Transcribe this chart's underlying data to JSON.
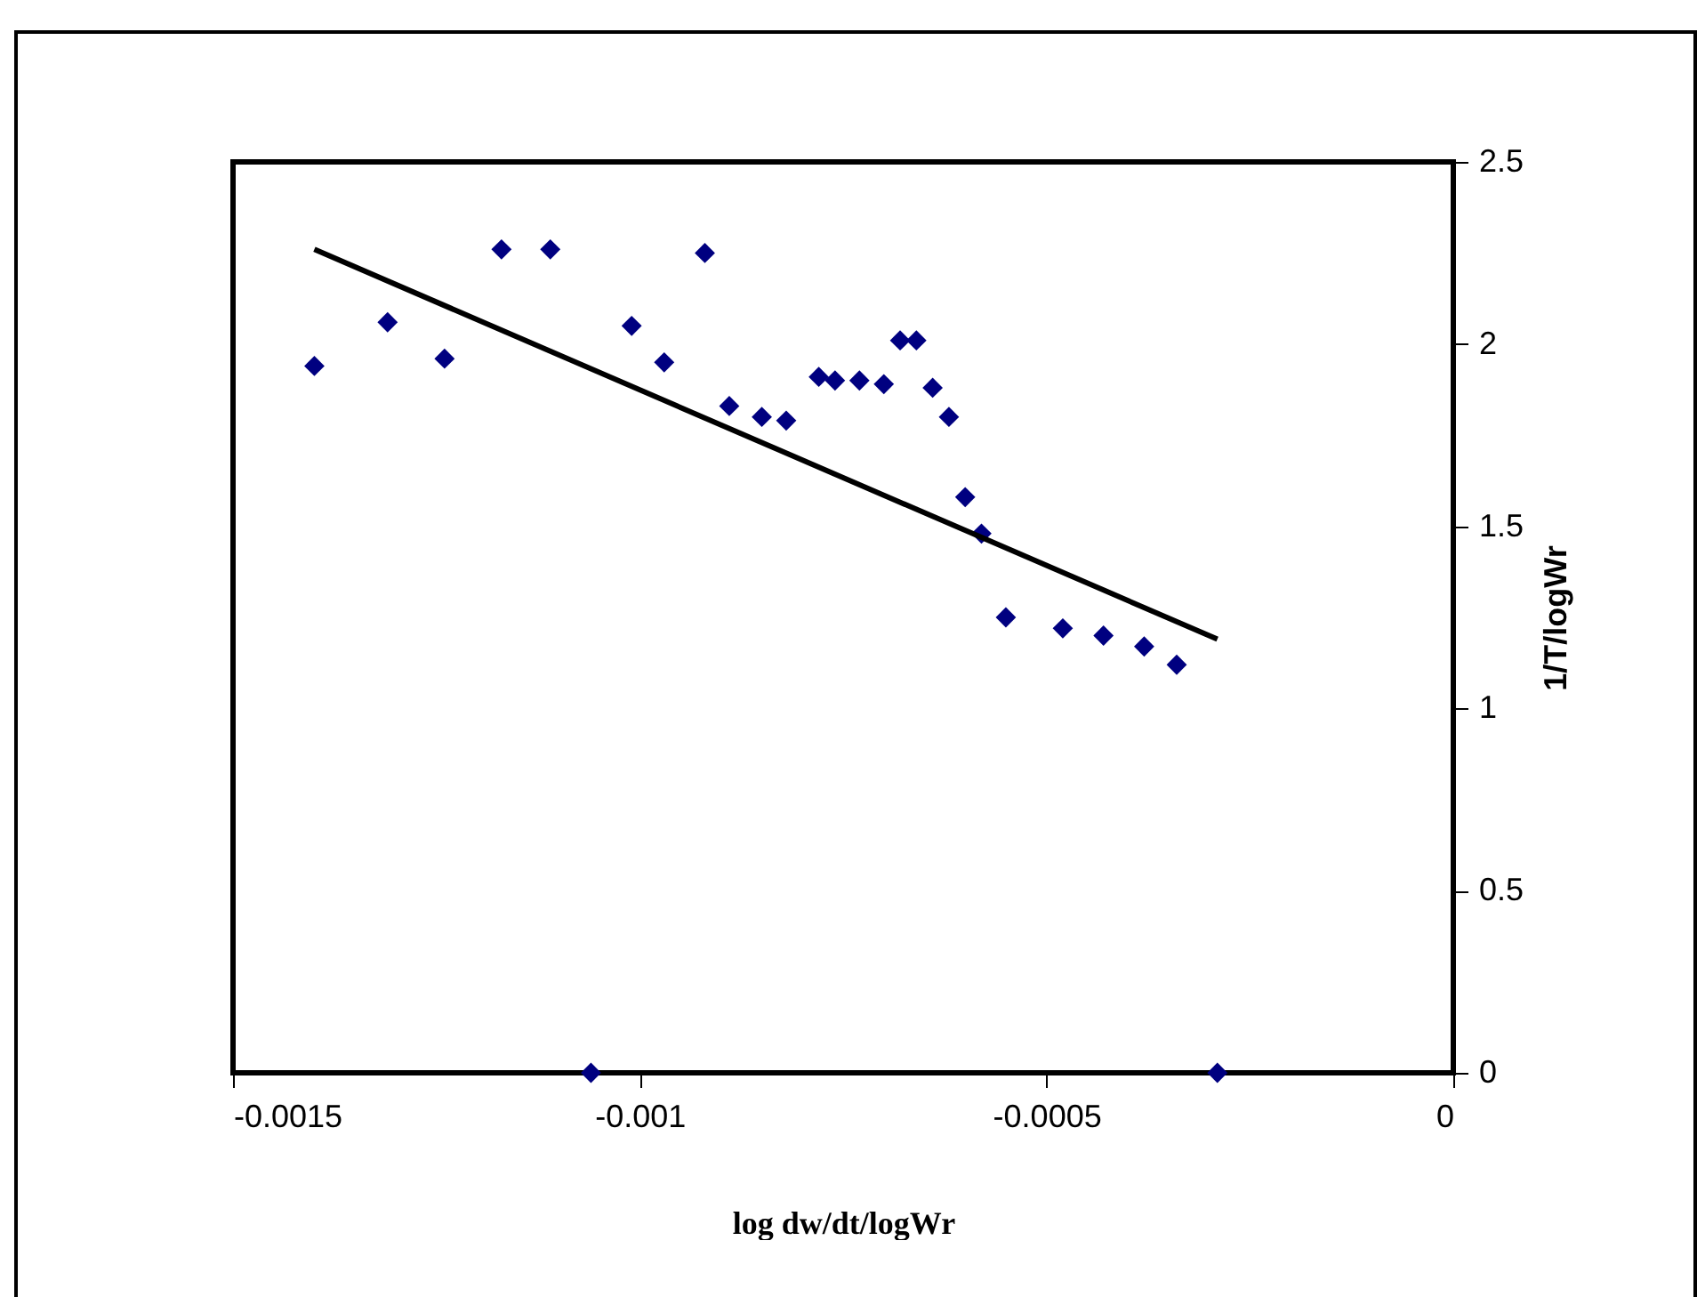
{
  "chart_data": {
    "type": "scatter",
    "xlabel": "log dw/dt/logWr",
    "ylabel": "1/T/logWr",
    "xlim": [
      -0.0015,
      0
    ],
    "xticks": [
      -0.0015,
      -0.001,
      -0.0005,
      0
    ],
    "ylim": [
      0,
      2.5
    ],
    "yticks": [
      0,
      0.5,
      1,
      1.5,
      2,
      2.5
    ],
    "grid": false,
    "series": [
      {
        "color": "#000080",
        "marker": "diamond",
        "x": [
          -0.0014,
          -0.00131,
          -0.00124,
          -0.00117,
          -0.00111,
          -0.00106,
          -0.00101,
          -0.00097,
          -0.00092,
          -0.00089,
          -0.00085,
          -0.00082,
          -0.00078,
          -0.00076,
          -0.00073,
          -0.0007,
          -0.00068,
          -0.00066,
          -0.00064,
          -0.00062,
          -0.0006,
          -0.00058,
          -0.00055,
          -0.00048,
          -0.00043,
          -0.00038,
          -0.00034,
          -0.00029
        ],
        "values": [
          1.94,
          2.06,
          1.96,
          2.26,
          2.26,
          0,
          2.05,
          1.95,
          2.25,
          1.83,
          1.8,
          1.79,
          1.91,
          1.9,
          1.9,
          1.89,
          2.01,
          2.01,
          1.88,
          1.8,
          1.58,
          1.48,
          1.25,
          1.22,
          1.2,
          1.17,
          1.12,
          0
        ]
      },
      {
        "type": "line",
        "color": "#000000",
        "marker": "none",
        "line_style": "solid",
        "x": [
          -0.0014,
          -0.00029
        ],
        "values": [
          2.26,
          1.19
        ]
      }
    ]
  }
}
